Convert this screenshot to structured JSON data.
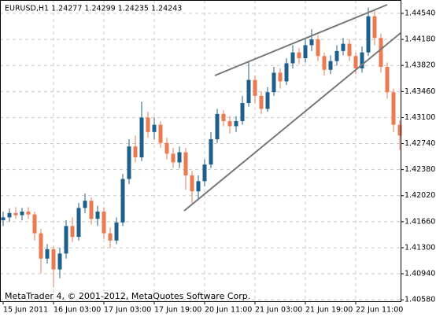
{
  "chart_data": {
    "type": "candlestick",
    "title": "EURUSD,H1  1.24277 1.24299 1.24235 1.24243",
    "footer": "MetaTrader 4, © 2001-2012, MetaQuotes Software Corp.",
    "categories": [
      "15 Jun 2011",
      null,
      null,
      null,
      null,
      null,
      null,
      null,
      "16 Jun 03:00",
      null,
      null,
      null,
      null,
      null,
      null,
      null,
      "17 Jun 03:00",
      null,
      null,
      null,
      null,
      null,
      null,
      null,
      "17 Jun 19:00",
      null,
      null,
      null,
      null,
      null,
      null,
      null,
      "20 Jun 11:00",
      null,
      null,
      null,
      null,
      null,
      null,
      null,
      "21 Jun 03:00",
      null,
      null,
      null,
      null,
      null,
      null,
      null,
      "21 Jun 19:00",
      null,
      null,
      null,
      null,
      null,
      null,
      null,
      "22 Jun 11:00",
      null,
      null,
      null,
      null,
      null,
      null,
      null
    ],
    "open": [
      1.4168,
      1.4172,
      1.4178,
      1.4175,
      1.418,
      1.4176,
      1.415,
      1.4115,
      1.4128,
      1.41,
      1.4122,
      1.416,
      1.4145,
      1.4185,
      1.4195,
      1.417,
      1.418,
      1.415,
      1.414,
      1.4165,
      1.4225,
      1.427,
      1.4255,
      1.431,
      1.429,
      1.43,
      1.4275,
      1.426,
      1.4248,
      1.4262,
      1.423,
      1.4208,
      1.4222,
      1.4245,
      1.428,
      1.4315,
      1.4305,
      1.4298,
      1.4305,
      1.433,
      1.4362,
      1.434,
      1.4322,
      1.4345,
      1.4372,
      1.436,
      1.4385,
      1.44,
      1.4392,
      1.441,
      1.4418,
      1.4395,
      1.4376,
      1.4388,
      1.4402,
      1.4412,
      1.4395,
      1.4378,
      1.44,
      1.445,
      1.442,
      1.438,
      1.4345,
      1.43
    ],
    "high": [
      1.418,
      1.4184,
      1.4186,
      1.4185,
      1.4186,
      1.418,
      1.4156,
      1.4135,
      1.4132,
      1.413,
      1.4168,
      1.4172,
      1.4192,
      1.4205,
      1.42,
      1.4188,
      1.4186,
      1.4158,
      1.4172,
      1.4232,
      1.428,
      1.4285,
      1.4332,
      1.4318,
      1.431,
      1.4305,
      1.4282,
      1.4268,
      1.427,
      1.4268,
      1.4236,
      1.423,
      1.4252,
      1.429,
      1.4322,
      1.432,
      1.4312,
      1.4312,
      1.434,
      1.4388,
      1.4368,
      1.4346,
      1.4352,
      1.438,
      1.4378,
      1.4392,
      1.441,
      1.4406,
      1.4418,
      1.4432,
      1.4424,
      1.44,
      1.4396,
      1.441,
      1.442,
      1.4418,
      1.44,
      1.4408,
      1.4462,
      1.4458,
      1.4426,
      1.4386,
      1.435,
      1.4306
    ],
    "low": [
      1.416,
      1.4166,
      1.417,
      1.4168,
      1.417,
      1.414,
      1.4095,
      1.4108,
      1.4075,
      1.4088,
      1.4115,
      1.4138,
      1.414,
      1.4178,
      1.4162,
      1.416,
      1.4142,
      1.413,
      1.4135,
      1.416,
      1.4218,
      1.4248,
      1.425,
      1.4282,
      1.428,
      1.4268,
      1.4252,
      1.424,
      1.424,
      1.421,
      1.4192,
      1.4196,
      1.4215,
      1.424,
      1.4275,
      1.4298,
      1.4288,
      1.429,
      1.43,
      1.4325,
      1.433,
      1.4315,
      1.4318,
      1.434,
      1.435,
      1.4355,
      1.4378,
      1.4384,
      1.4386,
      1.4402,
      1.4388,
      1.4368,
      1.437,
      1.4382,
      1.4396,
      1.4388,
      1.437,
      1.4372,
      1.4395,
      1.441,
      1.4372,
      1.4336,
      1.429,
      1.4265
    ],
    "close": [
      1.4172,
      1.4178,
      1.4175,
      1.418,
      1.4176,
      1.415,
      1.4115,
      1.4128,
      1.41,
      1.4122,
      1.416,
      1.4145,
      1.4185,
      1.4195,
      1.417,
      1.418,
      1.415,
      1.414,
      1.4165,
      1.4225,
      1.427,
      1.4255,
      1.431,
      1.429,
      1.43,
      1.4275,
      1.426,
      1.4248,
      1.4262,
      1.423,
      1.4208,
      1.4222,
      1.4245,
      1.428,
      1.4315,
      1.4305,
      1.4298,
      1.4305,
      1.433,
      1.4362,
      1.434,
      1.4322,
      1.4345,
      1.4372,
      1.436,
      1.4385,
      1.44,
      1.4392,
      1.441,
      1.4418,
      1.4395,
      1.4376,
      1.4388,
      1.4402,
      1.4412,
      1.4395,
      1.4378,
      1.44,
      1.445,
      1.442,
      1.438,
      1.4345,
      1.43,
      1.4285
    ],
    "up_color": "#1f5f8b",
    "down_color": "#ec7a50",
    "ylim": [
      1.4056,
      1.44725
    ],
    "yticks": [
      {
        "value": 1.4454,
        "label": "1.44540"
      },
      {
        "value": 1.4418,
        "label": "1.44180"
      },
      {
        "value": 1.4382,
        "label": "1.43820"
      },
      {
        "value": 1.4346,
        "label": "1.43460"
      },
      {
        "value": 1.431,
        "label": "1.43100"
      },
      {
        "value": 1.4274,
        "label": "1.42740"
      },
      {
        "value": 1.4238,
        "label": "1.42380"
      },
      {
        "value": 1.4202,
        "label": "1.42020"
      },
      {
        "value": 1.4166,
        "label": "1.41660"
      },
      {
        "value": 1.413,
        "label": "1.41300"
      },
      {
        "value": 1.4094,
        "label": "1.40940"
      },
      {
        "value": 1.4058,
        "label": "1.40580"
      }
    ],
    "grid": true
  }
}
